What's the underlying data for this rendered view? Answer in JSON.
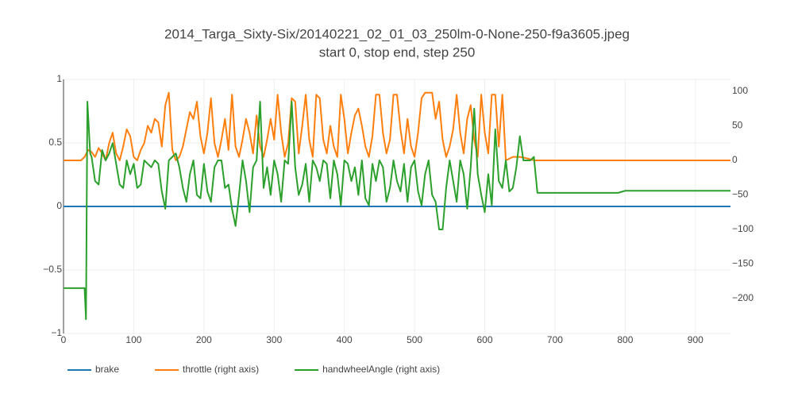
{
  "chart_data": {
    "type": "line",
    "title": "2014_Targa_Sixty-Six/20140221_02_01_03_250lm-0-None-250-f9a3605.jpeg",
    "subtitle": "start 0, stop end, step 250",
    "xlim": [
      0,
      950
    ],
    "xticks": [
      0,
      100,
      200,
      300,
      400,
      500,
      600,
      700,
      800,
      900
    ],
    "ylim": [
      -1,
      1
    ],
    "yticks": [
      {
        "value": -1,
        "label": "−1"
      },
      {
        "value": -0.5,
        "label": "−0.5"
      },
      0,
      0.5,
      1
    ],
    "y2lim": [
      -250.6,
      117.2
    ],
    "y2ticks": [
      {
        "value": -200,
        "label": "−200"
      },
      {
        "value": -150,
        "label": "−150"
      },
      {
        "value": -100,
        "label": "−100"
      },
      {
        "value": -50,
        "label": "−50"
      },
      0,
      50,
      100
    ],
    "grid": true,
    "legend": "bottom",
    "series": [
      {
        "name": "brake",
        "color": "#1f77b4",
        "axis": "y",
        "x": [
          0,
          950
        ],
        "values": [
          0,
          0
        ]
      },
      {
        "name": "throttle (right axis)",
        "color": "#ff7f0e",
        "axis": "y2",
        "x": [
          0,
          25,
          30,
          35,
          40,
          45,
          50,
          55,
          60,
          65,
          70,
          75,
          80,
          85,
          90,
          95,
          100,
          105,
          110,
          115,
          120,
          125,
          130,
          135,
          140,
          145,
          150,
          155,
          160,
          165,
          170,
          175,
          180,
          185,
          190,
          195,
          200,
          205,
          210,
          215,
          220,
          225,
          230,
          235,
          240,
          245,
          250,
          255,
          260,
          265,
          270,
          275,
          280,
          285,
          290,
          295,
          300,
          305,
          310,
          315,
          320,
          325,
          330,
          335,
          340,
          345,
          350,
          355,
          360,
          365,
          370,
          375,
          380,
          385,
          390,
          395,
          400,
          405,
          410,
          415,
          420,
          425,
          430,
          435,
          440,
          445,
          450,
          455,
          460,
          465,
          470,
          475,
          480,
          485,
          490,
          495,
          500,
          505,
          510,
          515,
          520,
          525,
          530,
          535,
          540,
          545,
          550,
          555,
          560,
          565,
          570,
          575,
          580,
          585,
          590,
          595,
          600,
          605,
          610,
          615,
          620,
          625,
          630,
          640,
          650,
          660,
          670,
          950
        ],
        "values": [
          0,
          0,
          5,
          15,
          12,
          5,
          18,
          10,
          0,
          25,
          40,
          10,
          0,
          20,
          45,
          35,
          5,
          0,
          15,
          25,
          50,
          40,
          60,
          55,
          20,
          80,
          98,
          15,
          0,
          5,
          20,
          45,
          70,
          60,
          85,
          35,
          10,
          40,
          90,
          25,
          5,
          30,
          60,
          15,
          95,
          20,
          5,
          30,
          60,
          40,
          10,
          65,
          20,
          5,
          30,
          60,
          30,
          95,
          40,
          5,
          25,
          90,
          85,
          10,
          50,
          95,
          30,
          5,
          95,
          90,
          30,
          10,
          50,
          20,
          5,
          95,
          60,
          10,
          40,
          65,
          75,
          50,
          20,
          5,
          35,
          95,
          95,
          40,
          10,
          30,
          95,
          95,
          45,
          10,
          60,
          20,
          5,
          40,
          90,
          98,
          98,
          98,
          60,
          85,
          30,
          5,
          20,
          45,
          95,
          40,
          10,
          60,
          80,
          30,
          5,
          95,
          40,
          10,
          95,
          95,
          20,
          95,
          0,
          5,
          5,
          3,
          0,
          0
        ]
      },
      {
        "name": "handwheelAngle (right axis)",
        "color": "#2ca02c",
        "axis": "y2",
        "x": [
          0,
          30,
          32,
          34,
          38,
          40,
          45,
          50,
          55,
          60,
          65,
          70,
          75,
          80,
          85,
          90,
          95,
          100,
          105,
          110,
          115,
          120,
          125,
          130,
          135,
          140,
          145,
          150,
          155,
          160,
          165,
          170,
          175,
          180,
          185,
          190,
          195,
          200,
          205,
          210,
          215,
          220,
          225,
          230,
          235,
          240,
          245,
          250,
          255,
          260,
          265,
          270,
          275,
          280,
          285,
          290,
          295,
          300,
          305,
          310,
          315,
          320,
          325,
          330,
          335,
          340,
          345,
          350,
          355,
          360,
          365,
          370,
          375,
          380,
          385,
          390,
          395,
          400,
          405,
          410,
          415,
          420,
          425,
          430,
          435,
          440,
          445,
          450,
          455,
          460,
          465,
          470,
          475,
          480,
          485,
          490,
          495,
          500,
          505,
          510,
          515,
          520,
          525,
          530,
          535,
          540,
          545,
          550,
          555,
          560,
          565,
          570,
          575,
          580,
          585,
          590,
          595,
          600,
          605,
          610,
          615,
          620,
          625,
          630,
          635,
          640,
          645,
          650,
          655,
          660,
          665,
          670,
          675,
          790,
          800,
          950
        ],
        "values": [
          -185,
          -185,
          -230,
          85,
          10,
          5,
          -30,
          -35,
          15,
          0,
          10,
          25,
          -5,
          -35,
          -40,
          0,
          -20,
          -5,
          -40,
          -35,
          0,
          -5,
          -10,
          0,
          -5,
          -45,
          -70,
          0,
          5,
          10,
          -10,
          -40,
          -60,
          -20,
          0,
          -50,
          -55,
          -5,
          -45,
          -60,
          -10,
          0,
          0,
          -40,
          -35,
          -70,
          -95,
          -50,
          0,
          -30,
          -75,
          -10,
          0,
          85,
          -40,
          -10,
          -50,
          0,
          -20,
          -60,
          0,
          -5,
          85,
          -10,
          -50,
          -35,
          -5,
          -60,
          0,
          -10,
          -30,
          0,
          -5,
          -55,
          0,
          -20,
          -65,
          0,
          -5,
          -30,
          -10,
          -50,
          0,
          -55,
          -65,
          -5,
          -30,
          0,
          -10,
          -60,
          -40,
          0,
          -30,
          -45,
          -5,
          -60,
          -10,
          0,
          -45,
          -65,
          -20,
          0,
          -50,
          -60,
          -100,
          -100,
          -40,
          0,
          -30,
          -60,
          0,
          -20,
          -70,
          -10,
          75,
          -20,
          -50,
          -75,
          -20,
          -65,
          45,
          -30,
          -40,
          0,
          -45,
          -40,
          -10,
          35,
          0,
          0,
          0,
          5,
          -47,
          -47,
          -44,
          -44
        ]
      }
    ]
  }
}
